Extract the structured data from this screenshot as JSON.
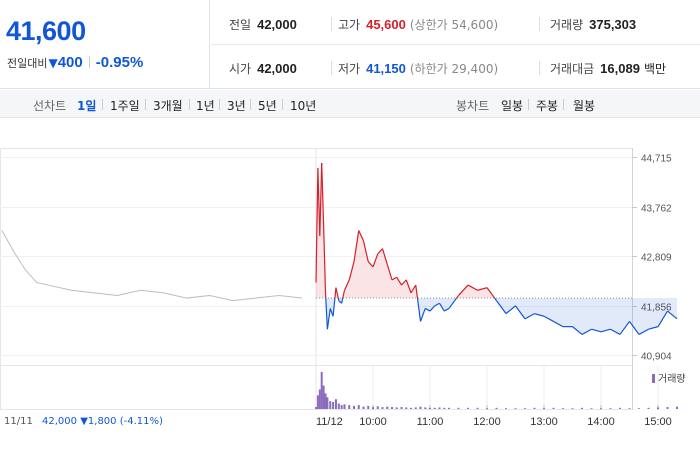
{
  "quote": {
    "price": "41,600",
    "change_label": "전일대비",
    "change_arrow": "▼",
    "change_value": "400",
    "change_pct": "-0.95%"
  },
  "stats": {
    "prev_close": {
      "label": "전일",
      "value": "42,000"
    },
    "open": {
      "label": "시가",
      "value": "42,000"
    },
    "high": {
      "label": "고가",
      "value": "45,600",
      "sub": "(상한가 54,600)"
    },
    "low": {
      "label": "저가",
      "value": "41,150",
      "sub": "(하한가 29,400)"
    },
    "volume": {
      "label": "거래량",
      "value": "375,303"
    },
    "amount": {
      "label": "거래대금",
      "value": "16,089",
      "unit": "백만"
    }
  },
  "tabs": {
    "line_label": "선차트",
    "line_items": [
      "1일",
      "1주일",
      "3개월",
      "1년",
      "3년",
      "5년",
      "10년"
    ],
    "line_active": "1일",
    "candle_label": "봉차트",
    "candle_items": [
      "일봉",
      "주봉",
      "월봉"
    ]
  },
  "colors": {
    "up": "#d6202a",
    "down": "#1156d8",
    "prev_line": "#bdbdbd",
    "volume": "#8a6bbd"
  },
  "chart_data": {
    "type": "line",
    "baseline": 42000,
    "ylim": [
      40904,
      44715
    ],
    "yticks": [
      "44,715",
      "43,762",
      "42,809",
      "41,856",
      "40,904"
    ],
    "xticks": [
      "11/12",
      "10:00",
      "11:00",
      "12:00",
      "13:00",
      "14:00",
      "15:00"
    ],
    "volume_legend": "거래량",
    "prev_day": {
      "label": "11/11",
      "x": [
        "09:00",
        "09:15",
        "09:30",
        "09:45",
        "10:00",
        "10:30",
        "11:00",
        "11:30",
        "12:00",
        "12:30",
        "13:00",
        "13:30",
        "14:00",
        "14:30",
        "15:00",
        "15:30"
      ],
      "values": [
        43300,
        42900,
        42550,
        42300,
        42250,
        42150,
        42100,
        42050,
        42150,
        42100,
        42000,
        42050,
        41950,
        42000,
        42050,
        42000
      ],
      "footer_price": "42,000",
      "footer_arrow": "▼",
      "footer_change": "1,800",
      "footer_pct": "(-4.11%)"
    },
    "today": {
      "label": "11/12",
      "x": [
        "09:00",
        "09:02",
        "09:04",
        "09:06",
        "09:08",
        "09:10",
        "09:12",
        "09:15",
        "09:18",
        "09:21",
        "09:24",
        "09:27",
        "09:30",
        "09:35",
        "09:40",
        "09:45",
        "09:50",
        "09:55",
        "10:00",
        "10:05",
        "10:10",
        "10:15",
        "10:20",
        "10:25",
        "10:30",
        "10:35",
        "10:40",
        "10:45",
        "10:50",
        "10:55",
        "11:00",
        "11:05",
        "11:10",
        "11:15",
        "11:20",
        "11:30",
        "11:40",
        "11:50",
        "12:00",
        "12:10",
        "12:20",
        "12:30",
        "12:40",
        "12:50",
        "13:00",
        "13:10",
        "13:20",
        "13:30",
        "13:40",
        "13:50",
        "14:00",
        "14:10",
        "14:20",
        "14:30",
        "14:40",
        "14:50",
        "15:00",
        "15:10",
        "15:20"
      ],
      "values": [
        42300,
        44500,
        43200,
        44600,
        43400,
        42100,
        41400,
        41800,
        41650,
        42200,
        41950,
        41900,
        42150,
        42350,
        42700,
        43300,
        43100,
        42700,
        42600,
        42850,
        42950,
        42650,
        42350,
        42400,
        42250,
        42350,
        42100,
        42250,
        41550,
        41800,
        41750,
        41850,
        41900,
        41750,
        41800,
        42050,
        42250,
        42150,
        42200,
        41950,
        41700,
        41850,
        41600,
        41700,
        41650,
        41550,
        41450,
        41450,
        41300,
        41400,
        41350,
        41400,
        41300,
        41550,
        41300,
        41400,
        41450,
        41750,
        41600
      ]
    },
    "volume_share": [
      0.05,
      0.35,
      0.5,
      0.95,
      0.6,
      0.4,
      0.3,
      0.2,
      0.18,
      0.25,
      0.14,
      0.1,
      0.12,
      0.1,
      0.08,
      0.1,
      0.06,
      0.08,
      0.05,
      0.07,
      0.05,
      0.06,
      0.05,
      0.04,
      0.05,
      0.04,
      0.03,
      0.04,
      0.06,
      0.04,
      0.03,
      0.03,
      0.04,
      0.03,
      0.03,
      0.03,
      0.03,
      0.03,
      0.02,
      0.03,
      0.02,
      0.02,
      0.02,
      0.03,
      0.02,
      0.03,
      0.02,
      0.02,
      0.03,
      0.02,
      0.02,
      0.02,
      0.03,
      0.02,
      0.02,
      0.03,
      0.04,
      0.05,
      0.06
    ]
  }
}
